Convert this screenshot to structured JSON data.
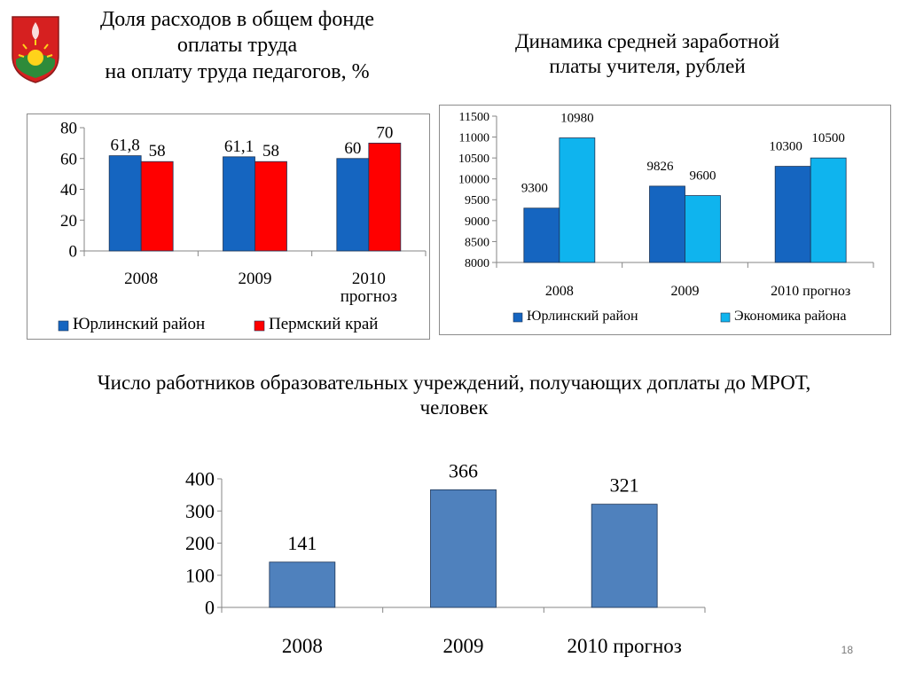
{
  "slide": {
    "title_left_lines": [
      "Доля расходов в общем фонде",
      "оплаты труда",
      "на оплату труда педагогов, %"
    ],
    "title_right_lines": [
      "Динамика средней заработной",
      "платы учителя, рублей"
    ],
    "title_bottom_lines": [
      "Число работников образовательных учреждений, получающих доплаты до МРОТ,",
      "человек"
    ],
    "page_number": "18",
    "emblem": "yurla-coat-of-arms-icon"
  },
  "chart_data": [
    {
      "id": "share",
      "type": "bar",
      "categories": [
        [
          "2008"
        ],
        [
          "2009"
        ],
        [
          "2010",
          "прогноз"
        ]
      ],
      "series": [
        {
          "name": "Юрлинский район",
          "values": [
            61.8,
            61.1,
            60
          ],
          "labels": [
            "61,8",
            "61,1",
            "60"
          ],
          "color": "#1565c0"
        },
        {
          "name": "Пермский край",
          "values": [
            58,
            58,
            70
          ],
          "labels": [
            "58",
            "58",
            "70"
          ],
          "color": "#ff0000"
        }
      ],
      "ylim": [
        0,
        80
      ],
      "yticks": [
        0,
        20,
        40,
        60,
        80
      ],
      "ytick_labels": [
        "0",
        "20",
        "40",
        "60",
        "80"
      ],
      "legend": "bottom",
      "grid": false
    },
    {
      "id": "salary",
      "type": "bar",
      "categories": [
        [
          "2008"
        ],
        [
          "2009"
        ],
        [
          "2010 прогноз"
        ]
      ],
      "series": [
        {
          "name": "Юрлинский район",
          "values": [
            9300,
            9826,
            10300
          ],
          "labels": [
            "9300",
            "9826",
            "10300"
          ],
          "color": "#1565c0"
        },
        {
          "name": "Экономика района",
          "values": [
            10980,
            9600,
            10500
          ],
          "labels": [
            "10980",
            "9600",
            "10500"
          ],
          "color": "#0fb4ee"
        }
      ],
      "ylim": [
        8000,
        11500
      ],
      "yticks": [
        8000,
        8500,
        9000,
        9500,
        10000,
        10500,
        11000,
        11500
      ],
      "ytick_labels": [
        "8000",
        "8500",
        "9000",
        "9500",
        "10000",
        "10500",
        "11000",
        "11500"
      ],
      "legend": "bottom",
      "grid": false
    },
    {
      "id": "mrot",
      "type": "bar",
      "categories": [
        [
          "2008"
        ],
        [
          "2009"
        ],
        [
          "2010 прогноз"
        ]
      ],
      "series": [
        {
          "values": [
            141,
            366,
            321
          ],
          "labels": [
            "141",
            "366",
            "321"
          ],
          "color": "#4f81bd"
        }
      ],
      "ylim": [
        0,
        400
      ],
      "yticks": [
        0,
        100,
        200,
        300,
        400
      ],
      "ytick_labels": [
        "0",
        "100",
        "200",
        "300",
        "400"
      ],
      "legend": "none",
      "grid": false
    }
  ]
}
